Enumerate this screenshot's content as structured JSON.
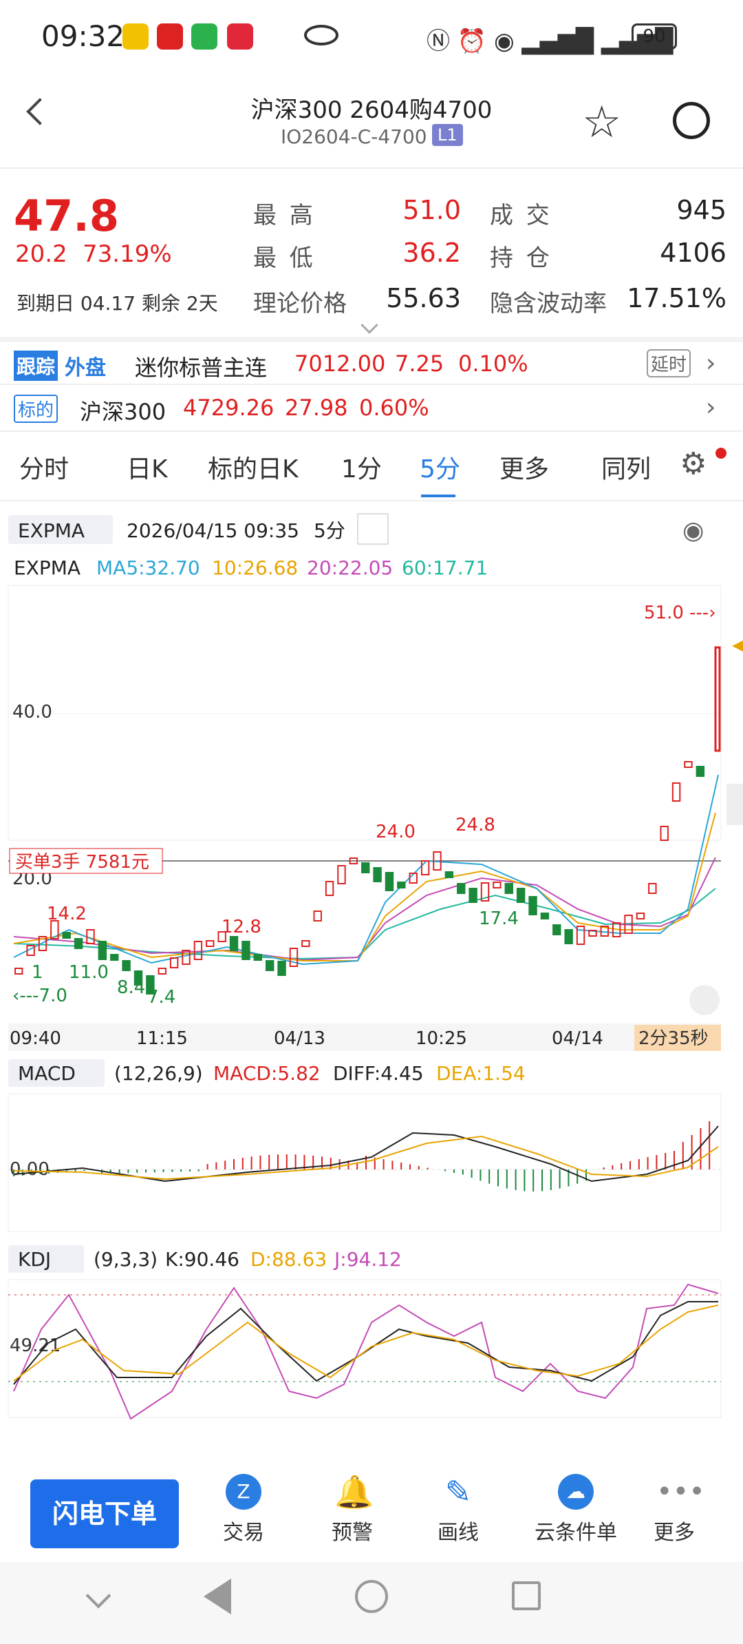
{
  "status": {
    "time": "09:32",
    "battery": "90"
  },
  "header": {
    "title": "沪深300 2604购4700",
    "code": "IO2604-C-4700",
    "level": "L1"
  },
  "quote": {
    "price": "47.8",
    "change": "20.2",
    "change_pct": "73.19%",
    "expiry_label": "到期日",
    "expiry_date": "04.17",
    "remain_label": "剩余",
    "remain": "2天",
    "high_label": "最 高",
    "high": "51.0",
    "low_label": "最 低",
    "low": "36.2",
    "theo_label": "理论价格",
    "theo": "55.63",
    "vol_label": "成 交",
    "volume": "945",
    "oi_label": "持 仓",
    "oi": "4106",
    "iv_label": "隐含波动率",
    "iv": "17.51%"
  },
  "follow": {
    "tag1": "跟踪",
    "tag2": "外盘",
    "name": "迷你标普主连",
    "price": "7012.00",
    "chg": "7.25",
    "pct": "0.10%",
    "badge": "延时"
  },
  "underlying": {
    "tag": "标的",
    "name": "沪深300",
    "price": "4729.26",
    "chg": "27.98",
    "pct": "0.60%"
  },
  "tabs": [
    "分时",
    "日K",
    "标的日K",
    "1分",
    "5分",
    "更多",
    "同列"
  ],
  "chart": {
    "indicator": "EXPMA",
    "datetime": "2026/04/15 09:35",
    "period": "5分",
    "legend_name": "EXPMA",
    "ma5": "MA5:32.70",
    "ma10": "10:26.68",
    "ma20": "20:22.05",
    "ma60": "60:17.71",
    "y40": "40.0",
    "y20": "20.0",
    "order_label": "买单3手  7581元",
    "max_label": "51.0",
    "low_label": "7.0",
    "annotations": [
      "14.2",
      "11.0",
      "8.4",
      "7.4",
      "12.8",
      "24.0",
      "24.8",
      "17.4",
      "1"
    ],
    "x_ticks": [
      "09:40",
      "11:15",
      "04/13",
      "10:25",
      "04/14"
    ],
    "countdown": "2分35秒",
    "colors": {
      "ma5": "#2aa6d8",
      "ma10": "#e8a400",
      "ma20": "#c44bb5",
      "ma60": "#22b8a0",
      "up": "#d22",
      "down": "#1a8a3a"
    }
  },
  "macd": {
    "name": "MACD",
    "params": "(12,26,9)",
    "macd": "MACD:5.82",
    "diff": "DIFF:4.45",
    "dea": "DEA:1.54",
    "zero": "0.00"
  },
  "kdj": {
    "name": "KDJ",
    "params": "(9,3,3)",
    "k": "K:90.46",
    "d": "D:88.63",
    "j": "J:94.12",
    "level": "49.21"
  },
  "bottom": {
    "main_button": "闪电下单",
    "items": [
      "交易",
      "预警",
      "画线",
      "云条件单",
      "更多"
    ]
  }
}
